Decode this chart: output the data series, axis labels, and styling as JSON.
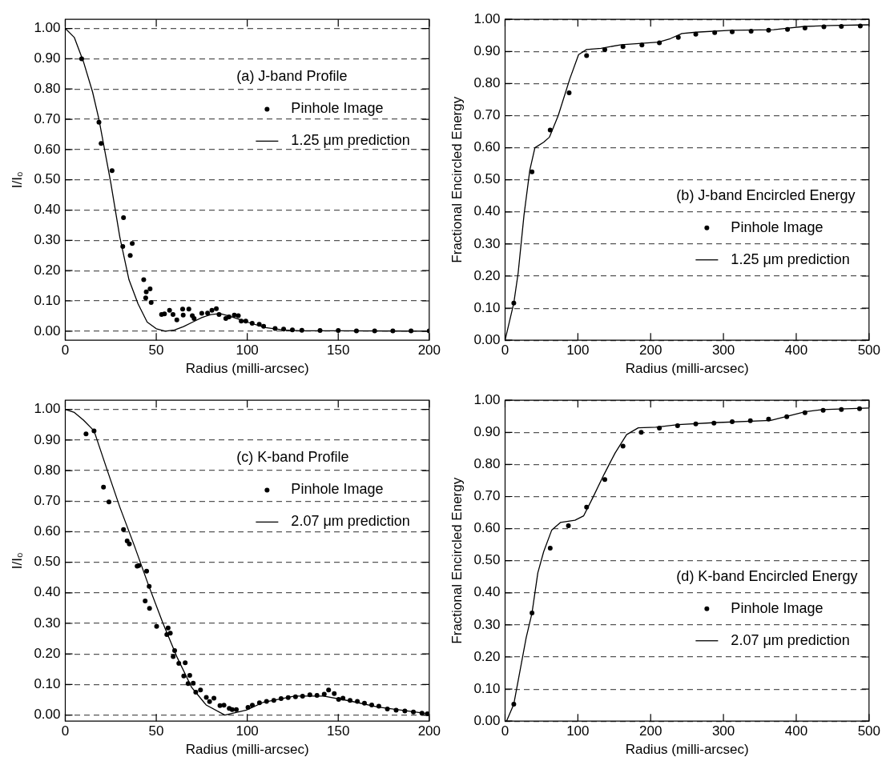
{
  "chart_data": [
    {
      "type": "line",
      "title": "(a) J-band Profile",
      "xlabel": "Radius (milli-arcsec)",
      "ylabel": "I/I₀",
      "xlim": [
        0,
        200
      ],
      "xticks": [
        0,
        50,
        100,
        150,
        200
      ],
      "ylim": [
        -0.03,
        1.03
      ],
      "yticks": [
        {
          "value": 0,
          "label": "0.00"
        },
        {
          "value": 0.1,
          "label": "0.10"
        },
        {
          "value": 0.2,
          "label": "0.20"
        },
        {
          "value": 0.3,
          "label": "0.30"
        },
        {
          "value": 0.4,
          "label": "0.40"
        },
        {
          "value": 0.5,
          "label": "0.50"
        },
        {
          "value": 0.6,
          "label": "0.60"
        },
        {
          "value": 0.7,
          "label": "0.70"
        },
        {
          "value": 0.8,
          "label": "0.80"
        },
        {
          "value": 0.9,
          "label": "0.90"
        },
        {
          "value": 1,
          "label": "1.00"
        }
      ],
      "grid": "y",
      "legend": "top right",
      "series": [
        {
          "name": "Pinhole Image",
          "type": "scatter",
          "marker": "circle",
          "color": "#000000",
          "x": [
            9,
            18.5,
            19.7,
            25.7,
            32,
            31.6,
            36.8,
            35.7,
            43.1,
            44.5,
            46.6,
            44.2,
            47.2,
            52.9,
            54.5,
            57.3,
            59.2,
            61.3,
            64.5,
            64.8,
            67.9,
            69.8,
            70.8,
            75,
            78.2,
            80.6,
            83,
            84.5,
            88.2,
            90,
            92.9,
            95.1,
            96.7,
            99.2,
            102.7,
            106.6,
            109,
            115.3,
            120,
            124.8,
            130,
            140,
            150,
            160,
            170,
            180,
            190,
            200
          ],
          "values": [
            0.9,
            0.69,
            0.62,
            0.53,
            0.375,
            0.28,
            0.29,
            0.25,
            0.17,
            0.13,
            0.14,
            0.11,
            0.095,
            0.055,
            0.057,
            0.069,
            0.055,
            0.037,
            0.073,
            0.053,
            0.073,
            0.051,
            0.042,
            0.059,
            0.06,
            0.069,
            0.074,
            0.055,
            0.042,
            0.047,
            0.053,
            0.051,
            0.033,
            0.033,
            0.026,
            0.023,
            0.016,
            0.009,
            0.007,
            0.004,
            0.003,
            0.002,
            0.002,
            0.001,
            0.001,
            0.001,
            0.001,
            0.001
          ]
        },
        {
          "name": "1.25 μm prediction",
          "type": "line",
          "marker": "none",
          "color": "#000000",
          "x": [
            0,
            5,
            10,
            15,
            18.5,
            25,
            30,
            35,
            40,
            45,
            50,
            55,
            60,
            65,
            70,
            75,
            80,
            85,
            90,
            95,
            100,
            110,
            120,
            130,
            150,
            200
          ],
          "values": [
            1,
            0.97,
            0.89,
            0.79,
            0.7,
            0.49,
            0.31,
            0.17,
            0.09,
            0.03,
            0.008,
            0,
            0.004,
            0.015,
            0.03,
            0.045,
            0.055,
            0.058,
            0.05,
            0.04,
            0.03,
            0.012,
            0.004,
            0.001,
            0.001,
            0
          ]
        }
      ]
    },
    {
      "type": "line",
      "title": "(b) J-band Encircled Energy",
      "xlabel": "Radius (milli-arcsec)",
      "ylabel": "Fractional Encircled Energy",
      "xlim": [
        0,
        500
      ],
      "xticks": [
        0,
        100,
        200,
        300,
        400,
        500
      ],
      "ylim": [
        0,
        1
      ],
      "yticks": [
        {
          "value": 0,
          "label": "0.00"
        },
        {
          "value": 0.1,
          "label": "0.10"
        },
        {
          "value": 0.2,
          "label": "0.20"
        },
        {
          "value": 0.3,
          "label": "0.30"
        },
        {
          "value": 0.4,
          "label": "0.40"
        },
        {
          "value": 0.5,
          "label": "0.50"
        },
        {
          "value": 0.6,
          "label": "0.60"
        },
        {
          "value": 0.7,
          "label": "0.70"
        },
        {
          "value": 0.8,
          "label": "0.80"
        },
        {
          "value": 0.9,
          "label": "0.90"
        },
        {
          "value": 1,
          "label": "1.00"
        }
      ],
      "grid": "y",
      "legend": "right",
      "series": [
        {
          "name": "Pinhole Image",
          "type": "scatter",
          "marker": "circle",
          "color": "#000000",
          "x": [
            12,
            37,
            62,
            88,
            112,
            137,
            162,
            188,
            212,
            238,
            262,
            288,
            312,
            338,
            362,
            388,
            412,
            438,
            462,
            488
          ],
          "values": [
            0.116,
            0.525,
            0.655,
            0.771,
            0.887,
            0.906,
            0.915,
            0.92,
            0.927,
            0.944,
            0.954,
            0.959,
            0.961,
            0.963,
            0.966,
            0.969,
            0.973,
            0.977,
            0.978,
            0.979
          ]
        },
        {
          "name": "1.25 μm prediction",
          "type": "line",
          "marker": "none",
          "color": "#000000",
          "x": [
            0,
            12,
            18,
            26,
            34,
            41,
            53,
            61,
            73,
            89,
            101,
            112,
            132,
            160,
            184,
            211,
            227,
            243,
            262,
            310,
            369,
            389,
            412,
            448,
            500
          ],
          "values": [
            0,
            0.116,
            0.21,
            0.39,
            0.53,
            0.6,
            0.617,
            0.633,
            0.7,
            0.815,
            0.89,
            0.906,
            0.91,
            0.921,
            0.925,
            0.929,
            0.94,
            0.956,
            0.96,
            0.966,
            0.968,
            0.973,
            0.978,
            0.981,
            0.983
          ]
        }
      ]
    },
    {
      "type": "line",
      "title": "(c) K-band Profile",
      "xlabel": "Radius (milli-arcsec)",
      "ylabel": "I/I₀",
      "xlim": [
        0,
        200
      ],
      "xticks": [
        0,
        50,
        100,
        150,
        200
      ],
      "ylim": [
        -0.02,
        1.03
      ],
      "yticks": [
        {
          "value": 0,
          "label": "0.00"
        },
        {
          "value": 0.1,
          "label": "0.10"
        },
        {
          "value": 0.2,
          "label": "0.20"
        },
        {
          "value": 0.3,
          "label": "0.30"
        },
        {
          "value": 0.4,
          "label": "0.40"
        },
        {
          "value": 0.5,
          "label": "0.50"
        },
        {
          "value": 0.6,
          "label": "0.60"
        },
        {
          "value": 0.7,
          "label": "0.70"
        },
        {
          "value": 0.8,
          "label": "0.80"
        },
        {
          "value": 0.9,
          "label": "0.90"
        },
        {
          "value": 1,
          "label": "1.00"
        }
      ],
      "grid": "y",
      "legend": "top right",
      "series": [
        {
          "name": "Pinhole Image",
          "type": "scatter",
          "marker": "circle",
          "color": "#000000",
          "x": [
            11.4,
            15.8,
            21,
            24,
            32,
            34,
            35.2,
            39.5,
            40.4,
            44.7,
            46.1,
            43.9,
            46.3,
            50.2,
            56.5,
            55.8,
            57.7,
            60.1,
            59.3,
            62.4,
            65.9,
            65.1,
            68.4,
            67.5,
            70.3,
            71.7,
            74.3,
            77.5,
            79.3,
            81.7,
            85,
            87.2,
            90.1,
            91.7,
            94,
            100.4,
            102.8,
            106.7,
            110.6,
            114.6,
            118.6,
            122.5,
            126.5,
            130.4,
            134.4,
            138.3,
            142.3,
            144.7,
            147.8,
            150.2,
            152.6,
            156.5,
            160.5,
            164.4,
            168.4,
            172.3,
            177,
            181.8,
            186.6,
            191.3,
            196,
            199
          ],
          "values": [
            0.92,
            0.93,
            0.746,
            0.697,
            0.607,
            0.57,
            0.56,
            0.487,
            0.489,
            0.471,
            0.421,
            0.373,
            0.349,
            0.29,
            0.285,
            0.263,
            0.268,
            0.211,
            0.191,
            0.169,
            0.171,
            0.128,
            0.13,
            0.103,
            0.104,
            0.075,
            0.082,
            0.058,
            0.044,
            0.055,
            0.031,
            0.032,
            0.022,
            0.018,
            0.018,
            0.025,
            0.032,
            0.04,
            0.045,
            0.048,
            0.054,
            0.057,
            0.06,
            0.062,
            0.066,
            0.064,
            0.068,
            0.082,
            0.07,
            0.051,
            0.055,
            0.048,
            0.045,
            0.039,
            0.033,
            0.029,
            0.02,
            0.016,
            0.013,
            0.01,
            0.006,
            0.004
          ]
        },
        {
          "name": "2.07 μm prediction",
          "type": "line",
          "marker": "none",
          "color": "#000000",
          "x": [
            0,
            5,
            10,
            15.8,
            23.7,
            30,
            37.9,
            45.8,
            53.7,
            61.6,
            69.5,
            77.4,
            87.7,
            99.5,
            109,
            126,
            142,
            156.5,
            172,
            200
          ],
          "values": [
            1,
            0.99,
            0.965,
            0.93,
            0.79,
            0.68,
            0.555,
            0.424,
            0.3,
            0.187,
            0.09,
            0.033,
            0,
            0.016,
            0.042,
            0.062,
            0.062,
            0.046,
            0.026,
            0.004
          ]
        }
      ]
    },
    {
      "type": "line",
      "title": "(d) K-band Encircled Energy",
      "xlabel": "Radius (milli-arcsec)",
      "ylabel": "Fractional Encircled Energy",
      "xlim": [
        0,
        500
      ],
      "xticks": [
        0,
        100,
        200,
        300,
        400,
        500
      ],
      "ylim": [
        0,
        1
      ],
      "yticks": [
        {
          "value": 0,
          "label": "0.00"
        },
        {
          "value": 0.1,
          "label": "0.10"
        },
        {
          "value": 0.2,
          "label": "0.20"
        },
        {
          "value": 0.3,
          "label": "0.30"
        },
        {
          "value": 0.4,
          "label": "0.40"
        },
        {
          "value": 0.5,
          "label": "0.50"
        },
        {
          "value": 0.6,
          "label": "0.60"
        },
        {
          "value": 0.7,
          "label": "0.70"
        },
        {
          "value": 0.8,
          "label": "0.80"
        },
        {
          "value": 0.9,
          "label": "0.90"
        },
        {
          "value": 1,
          "label": "1.00"
        }
      ],
      "grid": "y",
      "legend": "right",
      "series": [
        {
          "name": "Pinhole Image",
          "type": "scatter",
          "marker": "circle",
          "color": "#000000",
          "x": [
            12,
            37,
            62,
            87,
            112,
            137,
            162,
            187,
            212,
            237,
            262,
            287,
            312,
            337,
            362,
            387,
            412,
            437,
            462,
            487
          ],
          "values": [
            0.053,
            0.337,
            0.539,
            0.609,
            0.667,
            0.753,
            0.857,
            0.9,
            0.913,
            0.921,
            0.926,
            0.929,
            0.933,
            0.936,
            0.941,
            0.949,
            0.961,
            0.969,
            0.971,
            0.974
          ]
        },
        {
          "name": "2.07 μm prediction",
          "type": "line",
          "marker": "none",
          "color": "#000000",
          "x": [
            2,
            12,
            21,
            29,
            37,
            45,
            53,
            64,
            76,
            96,
            108,
            120,
            136,
            151,
            167,
            183,
            207,
            238,
            286,
            365,
            389,
            412,
            436,
            500
          ],
          "values": [
            0,
            0.053,
            0.163,
            0.26,
            0.337,
            0.462,
            0.528,
            0.595,
            0.619,
            0.626,
            0.64,
            0.694,
            0.769,
            0.835,
            0.893,
            0.914,
            0.916,
            0.924,
            0.93,
            0.937,
            0.951,
            0.964,
            0.971,
            0.976
          ]
        }
      ]
    }
  ]
}
